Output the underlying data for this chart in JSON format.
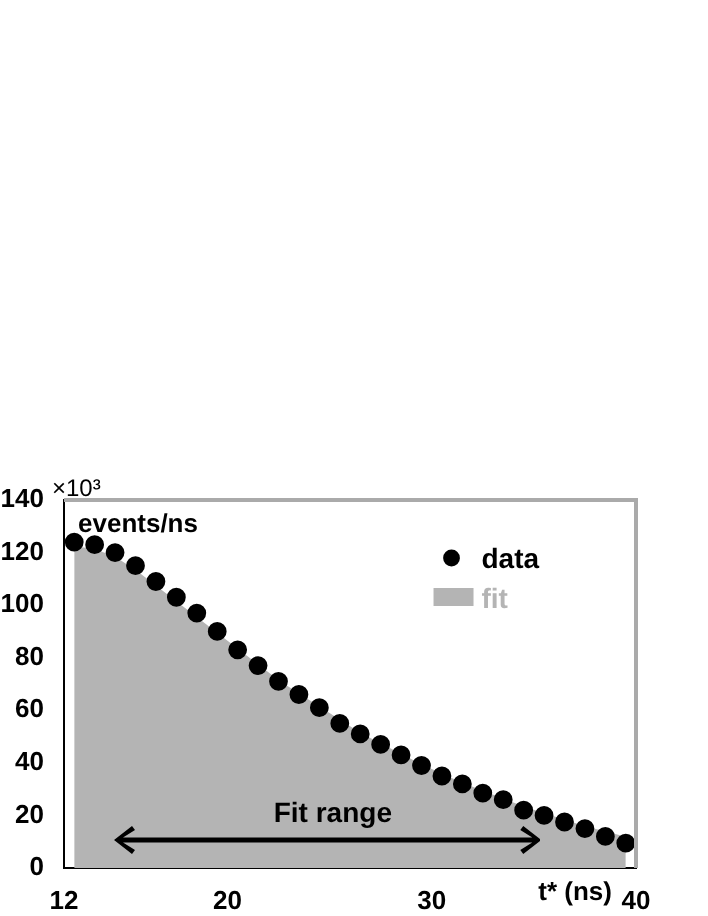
{
  "chart_data": {
    "type": "scatter",
    "ylabel": "events/ns",
    "xlabel": "t* (ns)",
    "x": [
      12.5,
      13.5,
      14.5,
      15.5,
      16.5,
      17.5,
      18.5,
      19.5,
      20.5,
      21.5,
      22.5,
      23.5,
      24.5,
      25.5,
      26.5,
      27.5,
      28.5,
      29.5,
      30.5,
      31.5,
      32.5,
      33.5,
      34.5,
      35.5,
      36.5,
      37.5,
      38.5,
      39.5
    ],
    "series": [
      {
        "name": "fit",
        "type": "area",
        "marker": "none",
        "color": "#b4b4b4",
        "values": [
          122,
          121,
          118,
          113,
          107,
          101,
          95,
          89,
          83,
          77,
          71,
          66,
          61,
          56,
          51,
          47,
          43,
          39,
          35.5,
          32,
          29,
          26,
          23,
          20.5,
          18,
          15.5,
          13.5,
          11.5
        ]
      },
      {
        "name": "data",
        "type": "scatter",
        "color": "#000000",
        "values": [
          124,
          123,
          120,
          115,
          109,
          103,
          97,
          90,
          83,
          77,
          71,
          66,
          61,
          55,
          51,
          47,
          43,
          39,
          35,
          32,
          28.5,
          26,
          22,
          20,
          17.5,
          15,
          12,
          9.5
        ]
      }
    ],
    "xlim": [
      12,
      40
    ],
    "xticks": [
      12,
      20,
      30,
      40
    ],
    "ylim": [
      0,
      140
    ],
    "yticks": [
      0,
      20,
      40,
      60,
      80,
      100,
      120,
      140
    ],
    "annotations": [
      "×10³",
      "Fit range"
    ],
    "legend": "top right",
    "marker": "circle",
    "grid": false
  }
}
